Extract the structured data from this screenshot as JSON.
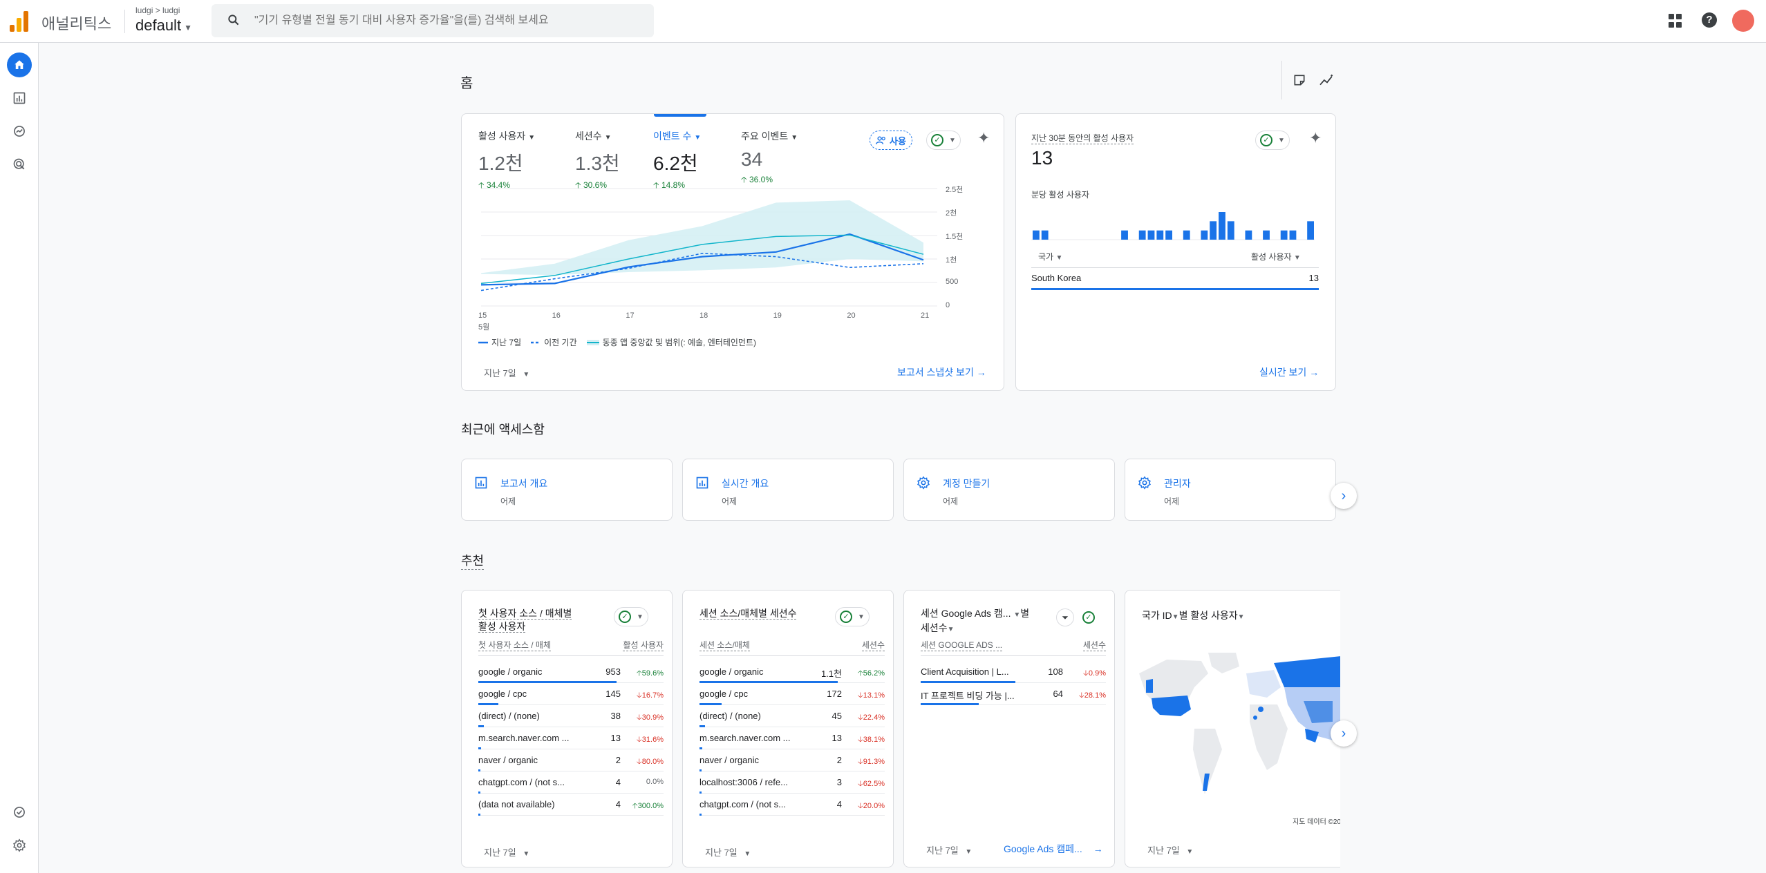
{
  "app": {
    "name": "애널리틱스",
    "account_path": "ludgi > ludgi",
    "property": "default"
  },
  "search": {
    "placeholder": "\"기기 유형별 전월 동기 대비 사용자 증가율\"을(를) 검색해 보세요"
  },
  "page": {
    "title": "홈"
  },
  "overview": {
    "metrics": [
      {
        "label": "활성 사용자",
        "value": "1.2천",
        "change": "34.4%"
      },
      {
        "label": "세션수",
        "value": "1.3천",
        "change": "30.6%"
      },
      {
        "label": "이벤트 수",
        "value": "6.2천",
        "change": "14.8%"
      },
      {
        "label": "주요 이벤트",
        "value": "34",
        "change": "36.0%"
      }
    ],
    "pill_label": "사용",
    "legend": {
      "current": "지난 7일",
      "previous": "이전 기간",
      "band": "동종 앱 중앙값 및 범위(: 예술, 엔터테인먼트)"
    },
    "period": "지난 7일",
    "link": "보고서 스냅샷 보기"
  },
  "chart_data": {
    "type": "line",
    "x": [
      "15",
      "16",
      "17",
      "18",
      "19",
      "20",
      "21"
    ],
    "x_sublabel": "5월",
    "y_ticks": [
      "0",
      "500",
      "1천",
      "1.5천",
      "2천",
      "2.5천"
    ],
    "ylim": [
      0,
      2500
    ],
    "series": [
      {
        "name": "지난 7일",
        "values": [
          450,
          480,
          830,
          1050,
          1150,
          1530,
          980
        ],
        "style": "solid"
      },
      {
        "name": "이전 기간",
        "values": [
          330,
          580,
          800,
          1120,
          1050,
          820,
          900
        ],
        "style": "dashed"
      },
      {
        "name": "동종 앱 중앙값",
        "values": [
          480,
          650,
          1000,
          1310,
          1480,
          1510,
          1100
        ],
        "style": "median"
      }
    ],
    "band": {
      "low": [
        680,
        660,
        720,
        760,
        820,
        1000,
        950
      ],
      "high": [
        700,
        900,
        1400,
        1700,
        2200,
        2250,
        1350
      ]
    }
  },
  "realtime": {
    "title": "지난 30분 동안의 활성 사용자",
    "value": "13",
    "subtitle": "분당 활성 사용자",
    "bars": [
      1,
      1,
      0,
      0,
      0,
      0,
      0,
      0,
      0,
      0,
      1,
      0,
      1,
      1,
      1,
      1,
      0,
      1,
      0,
      1,
      2,
      3,
      2,
      0,
      1,
      0,
      1,
      0,
      1,
      1,
      0,
      2
    ],
    "col_country": "국가",
    "col_users": "활성 사용자",
    "rows": [
      {
        "country": "South Korea",
        "users": "13"
      }
    ],
    "link": "실시간 보기"
  },
  "recent": {
    "title": "최근에 액세스함",
    "items": [
      {
        "title": "보고서 개요",
        "sub": "어제",
        "icon": "report-icon"
      },
      {
        "title": "실시간 개요",
        "sub": "어제",
        "icon": "report-icon"
      },
      {
        "title": "계정 만들기",
        "sub": "어제",
        "icon": "gear-icon"
      },
      {
        "title": "관리자",
        "sub": "어제",
        "icon": "gear-icon"
      }
    ]
  },
  "recommended": {
    "title": "추천",
    "card1": {
      "title_line1": "첫 사용자 소스 / 매체별",
      "title_line2": "활성 사용자",
      "col1": "첫 사용자 소스 / 매체",
      "col2": "활성 사용자",
      "rows": [
        {
          "name": "google / organic",
          "value": "953",
          "change": "59.6%",
          "dir": "up",
          "bar": 0.95
        },
        {
          "name": "google / cpc",
          "value": "145",
          "change": "16.7%",
          "dir": "down",
          "bar": 0.14
        },
        {
          "name": "(direct) / (none)",
          "value": "38",
          "change": "30.9%",
          "dir": "down",
          "bar": 0.04
        },
        {
          "name": "m.search.naver.com ...",
          "value": "13",
          "change": "31.6%",
          "dir": "down",
          "bar": 0.015
        },
        {
          "name": "naver / organic",
          "value": "2",
          "change": "80.0%",
          "dir": "down",
          "bar": 0
        },
        {
          "name": "chatgpt.com / (not s...",
          "value": "4",
          "change": "0.0%",
          "dir": "none",
          "bar": 0
        },
        {
          "name": "(data not available)",
          "value": "4",
          "change": "300.0%",
          "dir": "up",
          "bar": 0
        }
      ],
      "period": "지난 7일"
    },
    "card2": {
      "title_line1": "세션 소스/매체별 세션수",
      "col1": "세션 소스/매체",
      "col2": "세션수",
      "rows": [
        {
          "name": "google / organic",
          "value": "1.1천",
          "change": "56.2%",
          "dir": "up",
          "bar": 0.95
        },
        {
          "name": "google / cpc",
          "value": "172",
          "change": "13.1%",
          "dir": "down",
          "bar": 0.15
        },
        {
          "name": "(direct) / (none)",
          "value": "45",
          "change": "22.4%",
          "dir": "down",
          "bar": 0.04
        },
        {
          "name": "m.search.naver.com ...",
          "value": "13",
          "change": "38.1%",
          "dir": "down",
          "bar": 0.015
        },
        {
          "name": "naver / organic",
          "value": "2",
          "change": "91.3%",
          "dir": "down",
          "bar": 0
        },
        {
          "name": "localhost:3006 / refe...",
          "value": "3",
          "change": "62.5%",
          "dir": "down",
          "bar": 0
        },
        {
          "name": "chatgpt.com / (not s...",
          "value": "4",
          "change": "20.0%",
          "dir": "down",
          "bar": 0
        }
      ],
      "period": "지난 7일"
    },
    "card3": {
      "title_line1": "세션 Google Ads 캠...",
      "title_line1b": "별",
      "title_line2": "세션수",
      "col1": "세션 GOOGLE ADS ...",
      "col2": "세션수",
      "rows": [
        {
          "name": "Client Acquisition | L...",
          "value": "108",
          "change": "0.9%",
          "dir": "down",
          "bar": 0.65
        },
        {
          "name": "IT 프로젝트 비딩 가능 |...",
          "value": "64",
          "change": "28.1%",
          "dir": "down",
          "bar": 0.4
        }
      ],
      "period": "지난 7일",
      "link": "Google Ads 캠페..."
    },
    "card4": {
      "title": "국가 ID",
      "title_suffix": "별 활성 사용자",
      "map_credit": "지도 데이터 ©20",
      "period": "지난 7일"
    }
  },
  "colors": {
    "accent": "#1a73e8",
    "up": "#188038",
    "down": "#d93025",
    "band": "#d2eef3",
    "median": "#12b5cb"
  }
}
